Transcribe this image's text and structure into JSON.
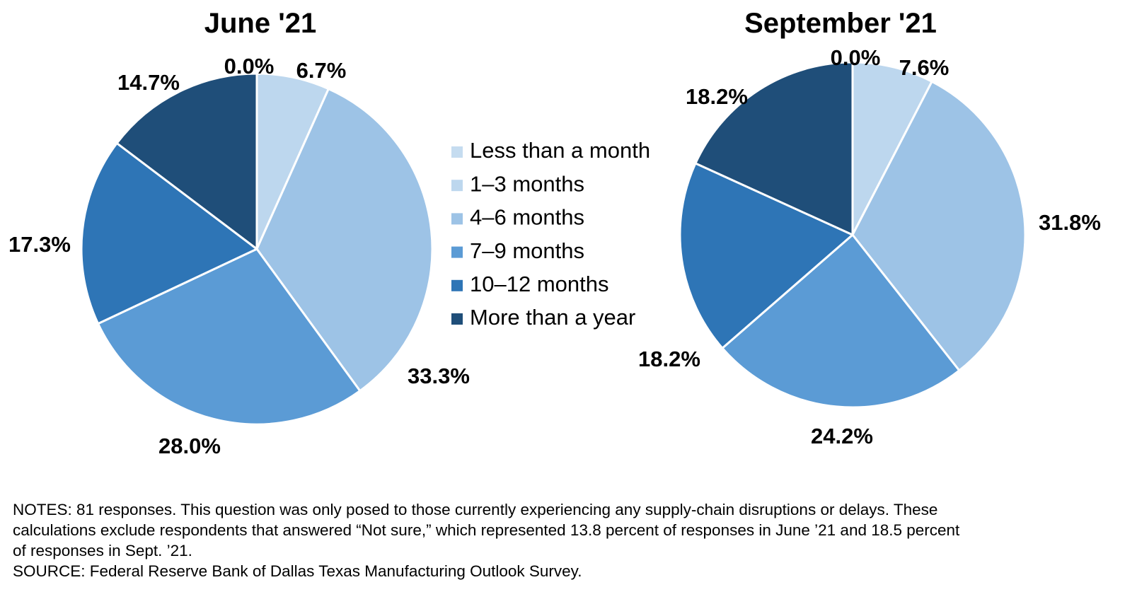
{
  "chart_data": [
    {
      "type": "pie",
      "title": "June '21",
      "categories": [
        "Less than a month",
        "1–3 months",
        "4–6 months",
        "7–9 months",
        "10–12 months",
        "More than a year"
      ],
      "values": [
        0.0,
        6.7,
        33.3,
        28.0,
        17.3,
        14.7
      ],
      "labels": [
        "0.0%",
        "6.7%",
        "33.3%",
        "28.0%",
        "17.3%",
        "14.7%"
      ],
      "legend": "center"
    },
    {
      "type": "pie",
      "title": "September '21",
      "categories": [
        "Less than a month",
        "1–3 months",
        "4–6 months",
        "7–9 months",
        "10–12 months",
        "More than a year"
      ],
      "values": [
        0.0,
        7.6,
        31.8,
        24.2,
        18.2,
        18.2
      ],
      "labels": [
        "0.0%",
        "7.6%",
        "31.8%",
        "24.2%",
        "18.2%",
        "18.2%"
      ],
      "legend": "center"
    }
  ],
  "legend": {
    "items": [
      {
        "label": "Less than a month",
        "color": "#c5dcf0"
      },
      {
        "label": "1–3 months",
        "color": "#bdd7ee"
      },
      {
        "label": "4–6 months",
        "color": "#9dc3e6"
      },
      {
        "label": "7–9 months",
        "color": "#5b9bd5"
      },
      {
        "label": "10–12 months",
        "color": "#2e75b6"
      },
      {
        "label": "More than a year",
        "color": "#1f4e79"
      }
    ]
  },
  "notes": {
    "line1": "NOTES: 81 responses. This question was only posed to those currently experiencing any supply-chain disruptions or delays. These",
    "line2": "calculations exclude respondents that answered “Not sure,” which represented 13.8 percent of responses in June ’21 and 18.5 percent",
    "line3": "of responses in Sept. ’21.",
    "source": "SOURCE: Federal Reserve Bank of Dallas Texas Manufacturing Outlook Survey."
  }
}
